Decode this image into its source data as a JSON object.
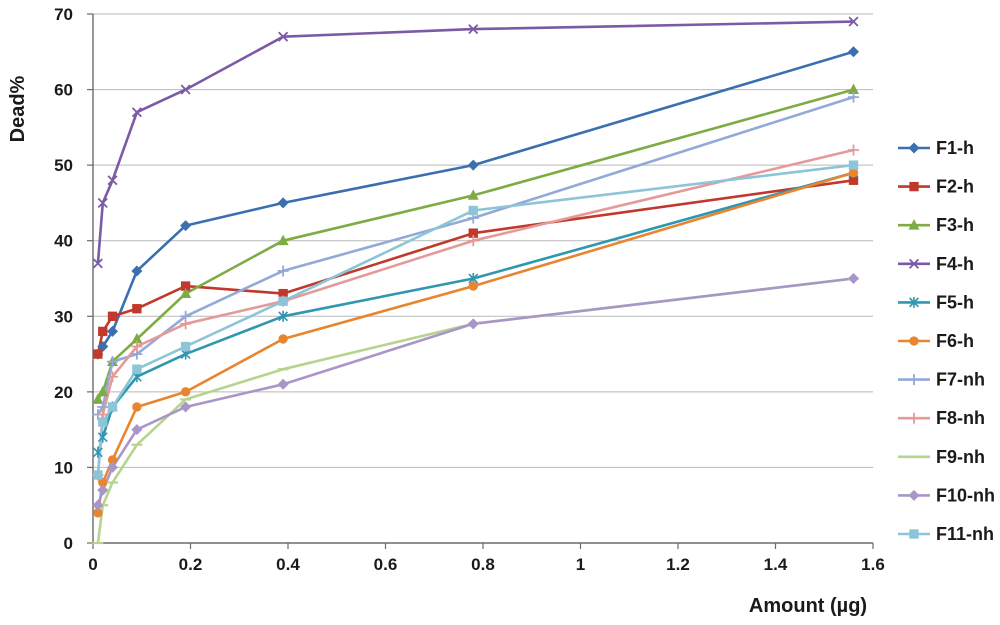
{
  "chart_data": {
    "type": "line",
    "xlabel": "Amount (µg)",
    "ylabel": "Dead%",
    "xlim": [
      0,
      1.6
    ],
    "ylim": [
      0,
      70
    ],
    "xticks": [
      0,
      0.2,
      0.4,
      0.6,
      0.8,
      1,
      1.2,
      1.4,
      1.6
    ],
    "xtick_labels": [
      "0",
      "0.2",
      "0.4",
      "0.6",
      "0.8",
      "1",
      "1.2",
      "1.4",
      "1.6"
    ],
    "yticks": [
      0,
      10,
      20,
      30,
      40,
      50,
      60,
      70
    ],
    "ytick_labels": [
      "0",
      "10",
      "20",
      "30",
      "40",
      "50",
      "60",
      "70"
    ],
    "grid": "horizontal",
    "legend_position": "right",
    "series": [
      {
        "name": "F1-h",
        "color": "#3b6fb0",
        "marker": "diamond",
        "x": [
          0.01,
          0.02,
          0.04,
          0.09,
          0.19,
          0.39,
          0.78,
          1.56
        ],
        "y": [
          25,
          26,
          28,
          36,
          42,
          45,
          50,
          65
        ]
      },
      {
        "name": "F2-h",
        "color": "#c0392b",
        "marker": "square",
        "x": [
          0.01,
          0.02,
          0.04,
          0.09,
          0.19,
          0.39,
          0.78,
          1.56
        ],
        "y": [
          25,
          28,
          30,
          31,
          34,
          33,
          41,
          48
        ]
      },
      {
        "name": "F3-h",
        "color": "#7fab45",
        "marker": "triangle",
        "x": [
          0.01,
          0.02,
          0.04,
          0.09,
          0.19,
          0.39,
          0.78,
          1.56
        ],
        "y": [
          19,
          20,
          24,
          27,
          33,
          40,
          46,
          60
        ]
      },
      {
        "name": "F4-h",
        "color": "#7b5aa6",
        "marker": "x",
        "x": [
          0.01,
          0.02,
          0.04,
          0.09,
          0.19,
          0.39,
          0.78,
          1.56
        ],
        "y": [
          37,
          45,
          48,
          57,
          60,
          67,
          68,
          69
        ]
      },
      {
        "name": "F5-h",
        "color": "#2f97b0",
        "marker": "star",
        "x": [
          0.01,
          0.02,
          0.04,
          0.09,
          0.19,
          0.39,
          0.78,
          1.56
        ],
        "y": [
          12,
          14,
          18,
          22,
          25,
          30,
          35,
          49
        ]
      },
      {
        "name": "F6-h",
        "color": "#e8852f",
        "marker": "circle",
        "x": [
          0.01,
          0.02,
          0.04,
          0.09,
          0.19,
          0.39,
          0.78,
          1.56
        ],
        "y": [
          4,
          8,
          11,
          18,
          20,
          27,
          34,
          49
        ]
      },
      {
        "name": "F7-nh",
        "color": "#93a9d8",
        "marker": "plus",
        "x": [
          0.01,
          0.02,
          0.04,
          0.09,
          0.19,
          0.39,
          0.78,
          1.56
        ],
        "y": [
          17,
          18,
          24,
          25,
          30,
          36,
          43,
          59
        ]
      },
      {
        "name": "F8-nh",
        "color": "#e59a9a",
        "marker": "plus",
        "x": [
          0.01,
          0.02,
          0.04,
          0.09,
          0.19,
          0.39,
          0.78,
          1.56
        ],
        "y": [
          9,
          17,
          22,
          26,
          29,
          32,
          40,
          52
        ]
      },
      {
        "name": "F9-nh",
        "color": "#b7d48e",
        "marker": "dash",
        "x": [
          0.01,
          0.02,
          0.04,
          0.09,
          0.19,
          0.39,
          0.78,
          1.56
        ],
        "y": [
          0,
          5,
          8,
          13,
          19,
          23,
          29,
          35
        ]
      },
      {
        "name": "F10-nh",
        "color": "#a896c8",
        "marker": "diamond",
        "x": [
          0.01,
          0.02,
          0.04,
          0.09,
          0.19,
          0.39,
          0.78,
          1.56
        ],
        "y": [
          5,
          7,
          10,
          15,
          18,
          21,
          29,
          35
        ]
      },
      {
        "name": "F11-nh",
        "color": "#8cc4d8",
        "marker": "square",
        "x": [
          0.01,
          0.02,
          0.04,
          0.09,
          0.19,
          0.39,
          0.78,
          1.56
        ],
        "y": [
          9,
          16,
          18,
          23,
          26,
          32,
          44,
          50
        ]
      }
    ]
  }
}
